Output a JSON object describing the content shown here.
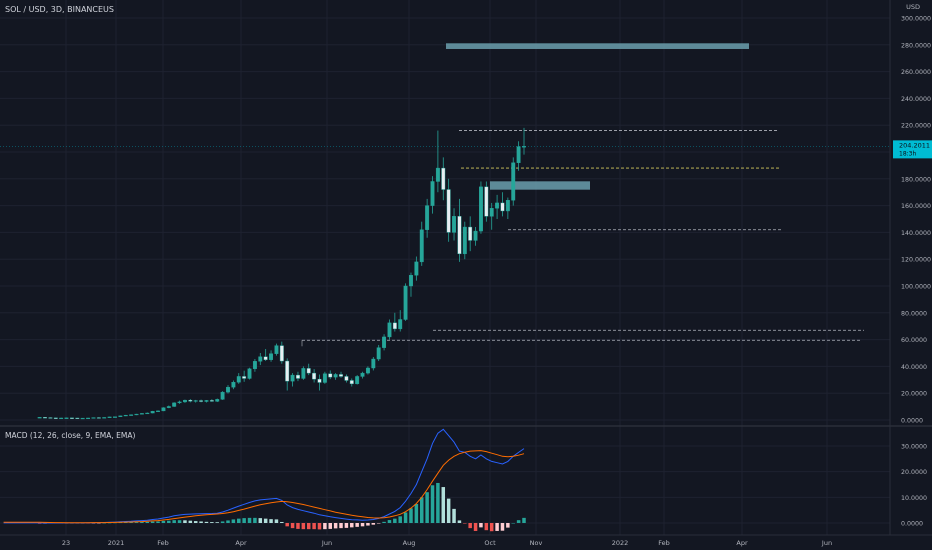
{
  "header": {
    "title": "SOL / USD, 3D, BINANCEUS",
    "currency": "USD"
  },
  "price_badge": {
    "price": "204.2011",
    "countdown": "18:3h",
    "color": "#00bcd4"
  },
  "colors": {
    "background": "#131722",
    "grid": "#1e2230",
    "up": "#26a69a",
    "down": "#ef5350",
    "candle_up_fill": "#26a69a",
    "candle_down_fill": "#e8eef2",
    "level_white": "#b2b5be",
    "level_yellow": "#d4c95e",
    "zone": "#6b9fad",
    "macd_line": "#2962ff",
    "signal_line": "#ff6d00",
    "hist_up_strong": "#26a69a",
    "hist_up_weak": "#b2dfdb",
    "hist_down_strong": "#ef5350",
    "hist_down_weak": "#ffcdd2"
  },
  "price_axis": {
    "ticks": [
      "300.0000",
      "280.0000",
      "260.0000",
      "240.0000",
      "220.0000",
      "200.0000",
      "180.0000",
      "160.0000",
      "140.0000",
      "120.0000",
      "100.0000",
      "80.0000",
      "60.0000",
      "40.0000",
      "20.0000",
      "0.0000"
    ]
  },
  "macd_axis": {
    "ticks": [
      "30.0000",
      "20.0000",
      "10.0000",
      "0.0000"
    ]
  },
  "time_axis": {
    "labels": [
      "23",
      "2021",
      "Feb",
      "Apr",
      "Jun",
      "Aug",
      "Oct",
      "Nov",
      "2022",
      "Feb",
      "Apr",
      "Jun"
    ]
  },
  "macd_pane": {
    "title": "MACD (12, 26, close, 9, EMA, EMA)"
  },
  "chart_data": {
    "type": "candlestick",
    "symbol": "SOL / USD",
    "timeframe": "3D",
    "ylim": [
      0,
      300
    ],
    "candles": [
      [
        2.0,
        2.2,
        1.8,
        2.0
      ],
      [
        2.0,
        2.1,
        1.6,
        1.8
      ],
      [
        1.8,
        2.0,
        1.5,
        1.6
      ],
      [
        1.6,
        1.8,
        1.4,
        1.5
      ],
      [
        1.5,
        1.7,
        1.3,
        1.5
      ],
      [
        1.5,
        1.8,
        1.4,
        1.6
      ],
      [
        1.6,
        1.9,
        1.4,
        1.5
      ],
      [
        1.5,
        1.6,
        1.2,
        1.3
      ],
      [
        1.3,
        1.5,
        1.1,
        1.4
      ],
      [
        1.4,
        1.6,
        1.3,
        1.5
      ],
      [
        1.5,
        1.9,
        1.4,
        1.8
      ],
      [
        1.8,
        2.1,
        1.6,
        1.7
      ],
      [
        1.7,
        2.0,
        1.5,
        1.9
      ],
      [
        1.9,
        2.4,
        1.8,
        2.3
      ],
      [
        2.3,
        2.6,
        2.1,
        2.4
      ],
      [
        2.4,
        3.2,
        2.3,
        3.1
      ],
      [
        3.1,
        3.8,
        2.9,
        3.6
      ],
      [
        3.6,
        4.2,
        3.3,
        3.9
      ],
      [
        3.9,
        4.6,
        3.6,
        4.4
      ],
      [
        4.4,
        5.2,
        4.1,
        4.9
      ],
      [
        4.9,
        5.6,
        4.5,
        5.2
      ],
      [
        5.2,
        6.8,
        5.0,
        6.5
      ],
      [
        6.5,
        7.2,
        6.0,
        6.8
      ],
      [
        6.8,
        9.5,
        6.6,
        9.2
      ],
      [
        9.2,
        10.8,
        8.8,
        10.1
      ],
      [
        10.1,
        13.2,
        9.8,
        12.8
      ],
      [
        12.8,
        14.5,
        12.0,
        13.5
      ],
      [
        13.5,
        15.2,
        12.8,
        14.8
      ],
      [
        14.8,
        15.6,
        13.2,
        14.0
      ],
      [
        14.0,
        15.0,
        13.0,
        14.5
      ],
      [
        14.5,
        15.2,
        13.2,
        13.8
      ],
      [
        13.8,
        14.9,
        13.1,
        14.6
      ],
      [
        14.6,
        15.5,
        13.6,
        13.9
      ],
      [
        13.9,
        16.0,
        13.4,
        15.4
      ],
      [
        15.4,
        21.5,
        15.0,
        20.8
      ],
      [
        20.8,
        26.0,
        19.8,
        24.5
      ],
      [
        24.5,
        29.5,
        23.0,
        28.2
      ],
      [
        28.2,
        35.0,
        27.0,
        32.5
      ],
      [
        32.5,
        36.8,
        28.5,
        31.0
      ],
      [
        31.0,
        39.0,
        30.2,
        38.2
      ],
      [
        38.2,
        45.5,
        36.0,
        43.8
      ],
      [
        43.8,
        50.0,
        41.0,
        47.2
      ],
      [
        47.2,
        53.0,
        44.0,
        45.0
      ],
      [
        45.0,
        52.0,
        43.5,
        49.5
      ],
      [
        49.5,
        57.0,
        48.0,
        55.5
      ],
      [
        55.5,
        58.5,
        42.0,
        44.0
      ],
      [
        44.0,
        46.0,
        22.0,
        29.0
      ],
      [
        29.0,
        35.0,
        25.0,
        33.5
      ],
      [
        33.5,
        36.0,
        29.0,
        31.0
      ],
      [
        31.0,
        40.0,
        30.0,
        38.5
      ],
      [
        38.5,
        42.0,
        33.5,
        35.0
      ],
      [
        35.0,
        38.0,
        28.0,
        30.5
      ],
      [
        30.5,
        34.0,
        22.0,
        28.0
      ],
      [
        28.0,
        36.0,
        27.0,
        34.5
      ],
      [
        34.5,
        37.0,
        30.5,
        32.0
      ],
      [
        32.0,
        35.0,
        30.0,
        34.0
      ],
      [
        34.0,
        36.0,
        31.5,
        32.5
      ],
      [
        32.5,
        34.0,
        28.0,
        29.5
      ],
      [
        29.5,
        31.0,
        25.0,
        27.0
      ],
      [
        27.0,
        33.5,
        26.5,
        32.5
      ],
      [
        32.5,
        36.0,
        31.0,
        35.0
      ],
      [
        35.0,
        40.0,
        34.0,
        38.8
      ],
      [
        38.8,
        47.0,
        37.0,
        45.5
      ],
      [
        45.5,
        56.0,
        44.0,
        54.0
      ],
      [
        54.0,
        64.0,
        52.0,
        62.0
      ],
      [
        62.0,
        75.0,
        60.0,
        72.5
      ],
      [
        72.5,
        80.0,
        66.0,
        68.0
      ],
      [
        68.0,
        82.0,
        66.0,
        75.0
      ],
      [
        75.0,
        102.0,
        74.0,
        100.0
      ],
      [
        100.0,
        110.0,
        92.0,
        108.0
      ],
      [
        108.0,
        122.0,
        104.0,
        118.0
      ],
      [
        118.0,
        148.0,
        115.0,
        142.0
      ],
      [
        142.0,
        165.0,
        136.0,
        160.0
      ],
      [
        160.0,
        182.0,
        154.0,
        178.0
      ],
      [
        178.0,
        216.0,
        170.0,
        188.0
      ],
      [
        188.0,
        196.0,
        164.0,
        172.0
      ],
      [
        172.0,
        180.0,
        133.0,
        140.0
      ],
      [
        140.0,
        158.0,
        134.0,
        152.0
      ],
      [
        152.0,
        165.0,
        118.0,
        124.0
      ],
      [
        124.0,
        148.0,
        120.0,
        144.0
      ],
      [
        144.0,
        152.0,
        126.0,
        134.0
      ],
      [
        134.0,
        144.0,
        130.0,
        141.0
      ],
      [
        141.0,
        178.0,
        139.0,
        174.0
      ],
      [
        174.0,
        178.0,
        148.0,
        152.0
      ],
      [
        152.0,
        162.0,
        142.0,
        158.0
      ],
      [
        158.0,
        168.0,
        150.0,
        162.0
      ],
      [
        162.0,
        170.0,
        152.0,
        156.0
      ],
      [
        156.0,
        166.0,
        150.0,
        164.0
      ],
      [
        164.0,
        196.0,
        160.0,
        192.0
      ],
      [
        192.0,
        208.0,
        186.0,
        204.0
      ],
      [
        204.0,
        218.0,
        198.0,
        204.2
      ]
    ],
    "levels": [
      216,
      188,
      142,
      67,
      59.5
    ],
    "zones": [
      [
        278,
        280
      ],
      [
        173,
        177
      ]
    ],
    "macd": [
      0.02,
      0.01,
      0.01,
      0.01,
      0.0,
      0.02,
      0.03,
      0.04,
      0.05,
      0.06,
      0.1,
      0.14,
      0.2,
      0.28,
      0.36,
      0.46,
      0.58,
      0.68,
      0.8,
      0.95,
      1.1,
      1.35,
      1.55,
      1.95,
      2.3,
      2.8,
      3.1,
      3.35,
      3.45,
      3.55,
      3.6,
      3.65,
      3.7,
      3.8,
      4.3,
      5.0,
      5.8,
      6.6,
      7.3,
      8.0,
      8.6,
      9.0,
      9.2,
      9.4,
      9.6,
      8.8,
      7.0,
      6.0,
      5.3,
      4.8,
      4.3,
      3.8,
      3.2,
      2.8,
      2.4,
      2.1,
      1.8,
      1.5,
      1.3,
      1.2,
      1.1,
      1.15,
      1.35,
      1.8,
      2.5,
      3.5,
      4.5,
      6.0,
      8.5,
      11.5,
      15.0,
      20.0,
      25.0,
      31.0,
      35.0,
      36.5,
      34.0,
      31.5,
      28.0,
      27.5,
      26.0,
      25.0,
      26.5,
      25.0,
      24.0,
      23.5,
      23.0,
      24.0,
      26.0,
      27.5,
      29.0
    ],
    "signal": [
      0.3,
      0.25,
      0.2,
      0.17,
      0.14,
      0.12,
      0.12,
      0.12,
      0.12,
      0.13,
      0.14,
      0.15,
      0.17,
      0.2,
      0.24,
      0.28,
      0.34,
      0.4,
      0.48,
      0.56,
      0.66,
      0.8,
      0.95,
      1.15,
      1.4,
      1.7,
      2.0,
      2.3,
      2.55,
      2.8,
      3.0,
      3.2,
      3.35,
      3.5,
      3.7,
      4.0,
      4.4,
      4.9,
      5.4,
      6.0,
      6.6,
      7.1,
      7.5,
      7.9,
      8.2,
      8.4,
      8.3,
      8.0,
      7.6,
      7.2,
      6.7,
      6.2,
      5.7,
      5.2,
      4.7,
      4.2,
      3.8,
      3.4,
      3.0,
      2.7,
      2.4,
      2.15,
      2.0,
      1.95,
      2.05,
      2.35,
      2.8,
      3.4,
      4.4,
      5.8,
      7.6,
      10.0,
      13.0,
      16.3,
      19.4,
      22.5,
      24.5,
      26.0,
      27.0,
      27.6,
      28.0,
      28.1,
      28.2,
      27.8,
      27.2,
      26.6,
      26.0,
      25.8,
      26.0,
      26.4,
      27.0
    ]
  }
}
